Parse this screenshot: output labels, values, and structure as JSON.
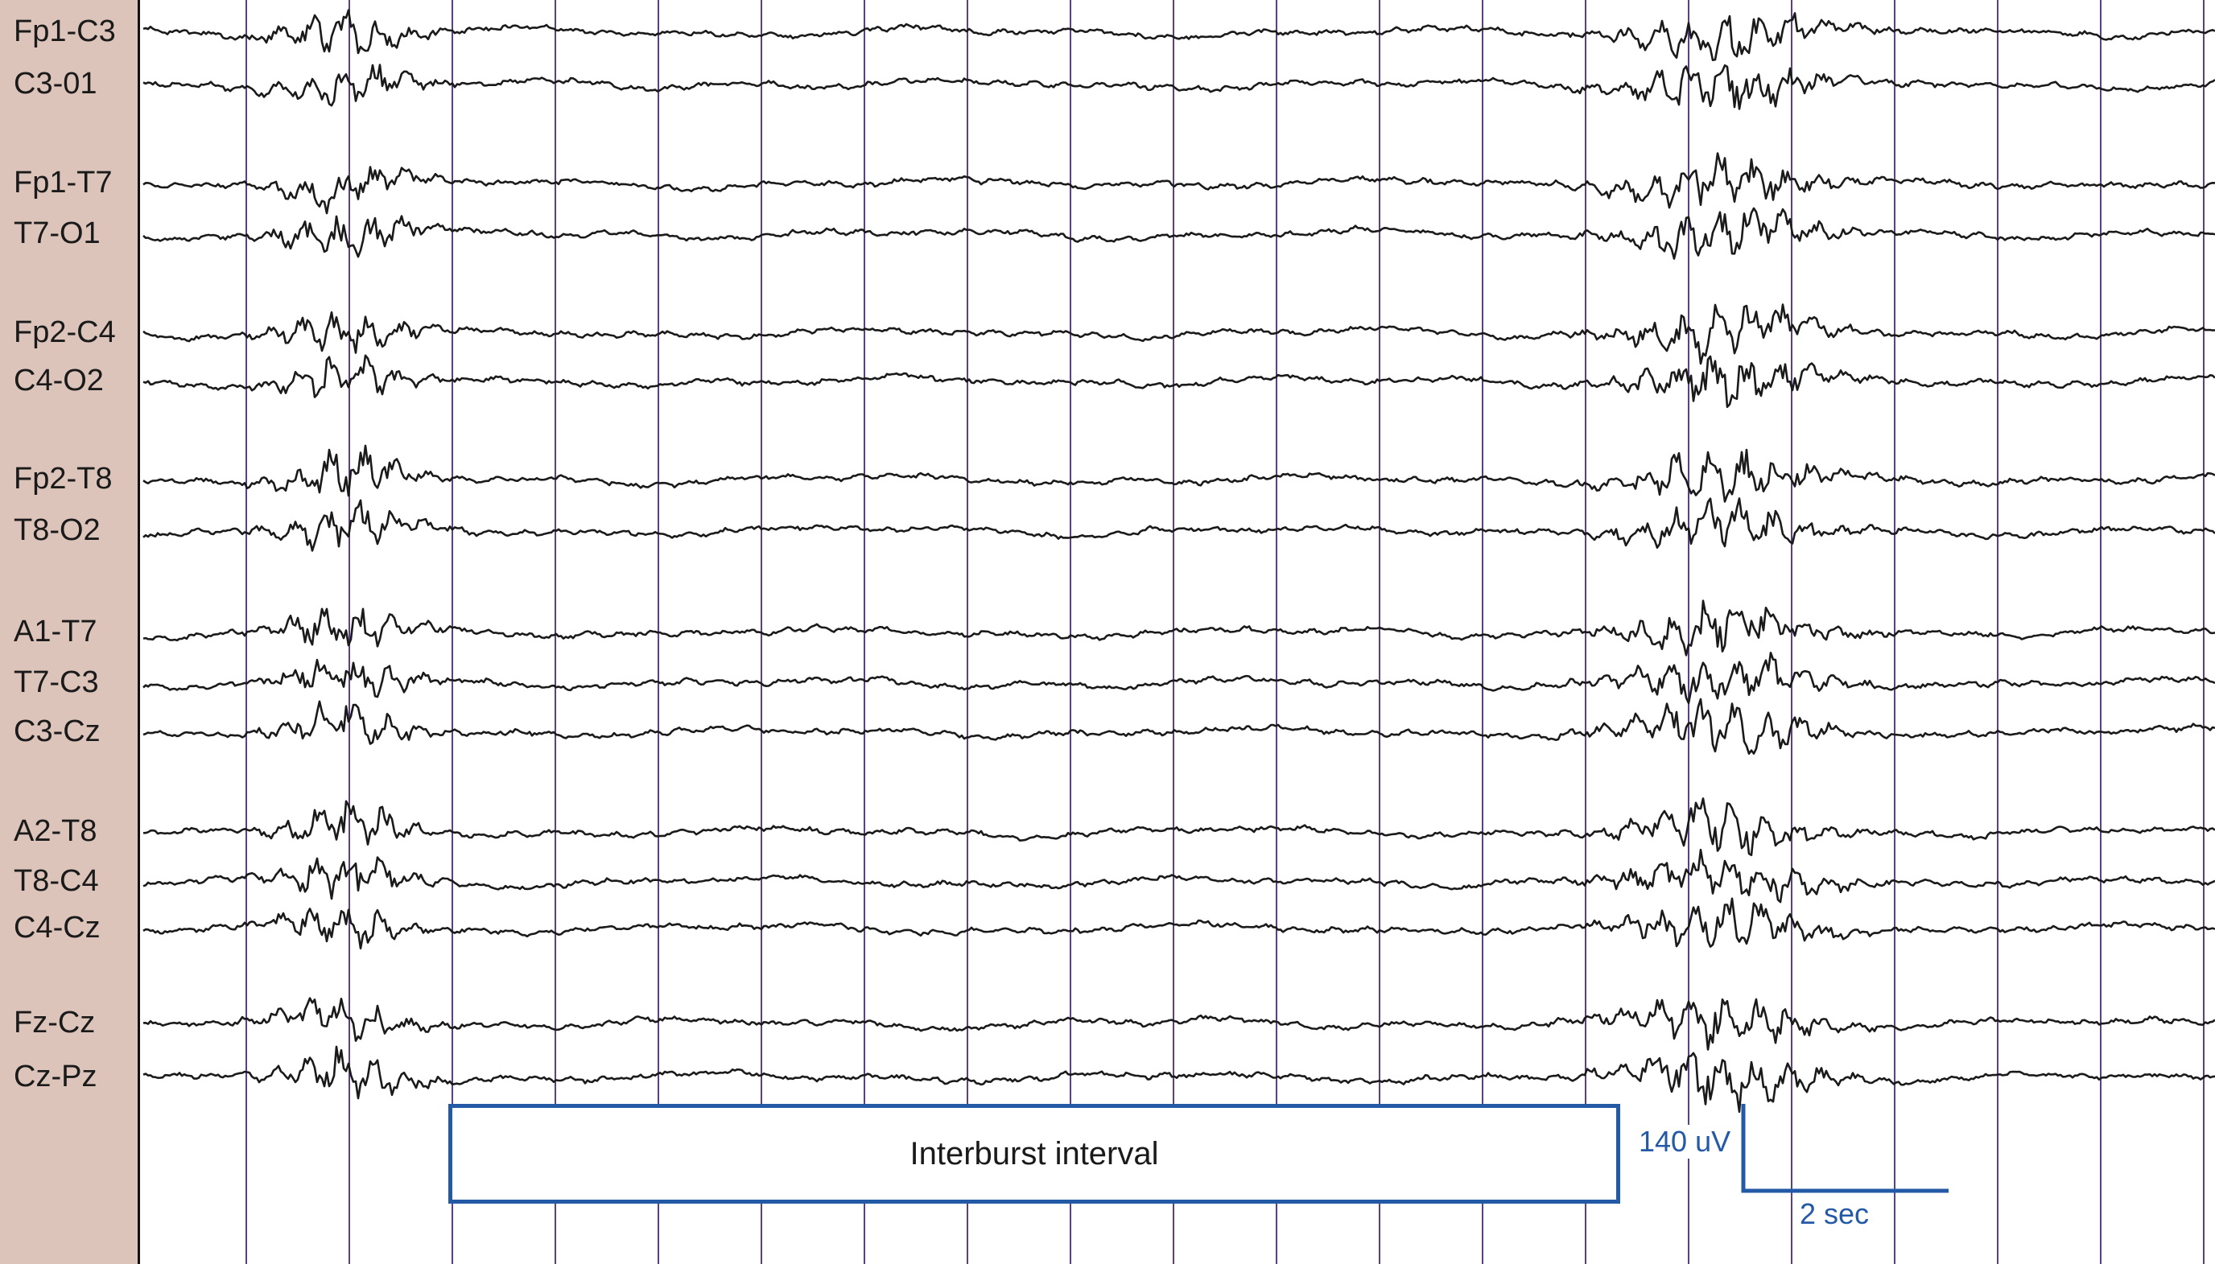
{
  "channels": [
    {
      "name": "Fp1-C3"
    },
    {
      "name": "C3-01"
    },
    {
      "name": "Fp1-T7"
    },
    {
      "name": "T7-O1"
    },
    {
      "name": "Fp2-C4"
    },
    {
      "name": "C4-O2"
    },
    {
      "name": "Fp2-T8"
    },
    {
      "name": "T8-O2"
    },
    {
      "name": "A1-T7"
    },
    {
      "name": "T7-C3"
    },
    {
      "name": "C3-Cz"
    },
    {
      "name": "A2-T8"
    },
    {
      "name": "T8-C4"
    },
    {
      "name": "C4-Cz"
    },
    {
      "name": "Fz-Cz"
    },
    {
      "name": "Cz-Pz"
    }
  ],
  "annotation": {
    "interval_label": "Interburst interval"
  },
  "calibration": {
    "amplitude_label": "140 uV",
    "time_label": "2 sec"
  },
  "colors": {
    "trace": "#1a1a1a",
    "gridline": "#5b3f8c",
    "annotation": "#2459a6",
    "label_panel": "#dcc4bb"
  }
}
